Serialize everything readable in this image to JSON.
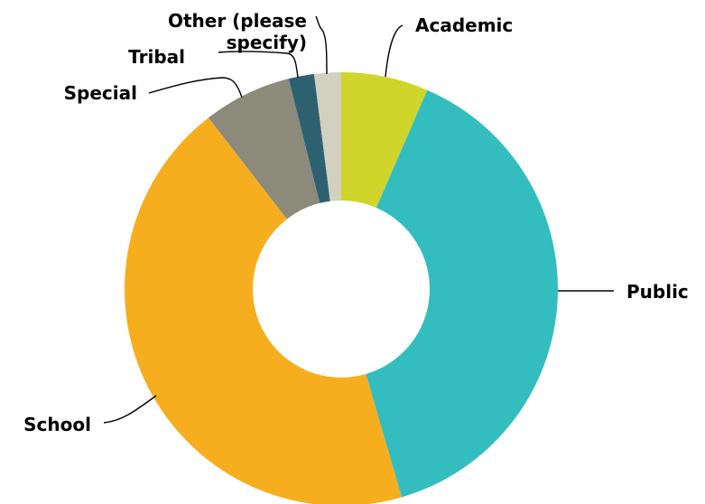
{
  "chart_data": {
    "type": "pie",
    "donut": true,
    "title": "",
    "categories": [
      "Academic",
      "Public",
      "School",
      "Special",
      "Tribal",
      "Other (please specify)"
    ],
    "values": [
      6.5,
      39.0,
      44.0,
      6.6,
      1.9,
      2.0
    ],
    "unit": "percent",
    "colors": [
      "#cfd52a",
      "#34bdbf",
      "#f6ae1e",
      "#8c8a7b",
      "#2e6170",
      "#d2d0c0"
    ],
    "labels_lines": [
      [
        "Academic"
      ],
      [
        "Public"
      ],
      [
        "School"
      ],
      [
        "Special"
      ],
      [
        "Tribal"
      ],
      [
        "Other (please",
        "specify)"
      ]
    ],
    "legend": "none",
    "start_angle_deg": 0,
    "direction": "clockwise"
  }
}
